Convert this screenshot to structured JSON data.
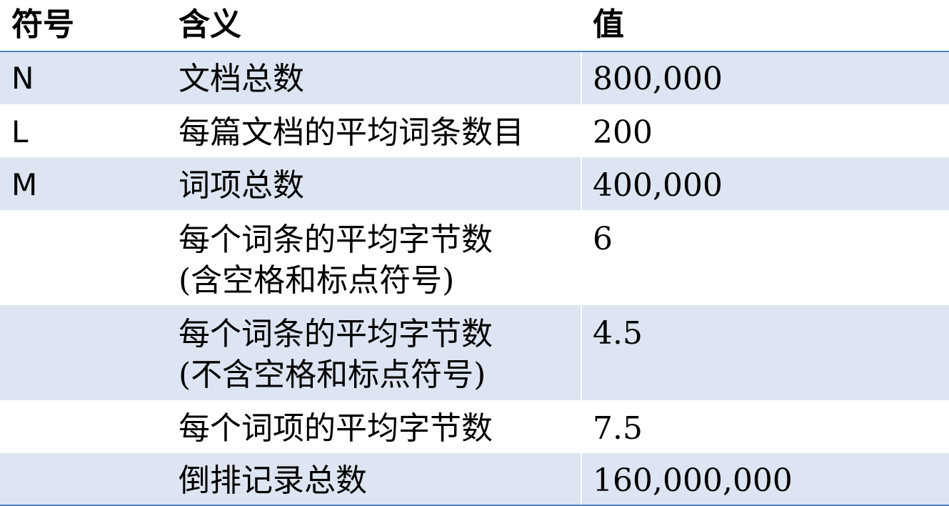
{
  "table": {
    "headers": {
      "symbol": "符号",
      "meaning": "含义",
      "value": "值"
    },
    "rows": [
      {
        "symbol": "N",
        "meaning": [
          "文档总数"
        ],
        "value": "800,000",
        "shade": "#dce5f1"
      },
      {
        "symbol": "L",
        "meaning": [
          "每篇文档的平均词条数目"
        ],
        "value": "200",
        "shade": "#ffffff"
      },
      {
        "symbol": "M",
        "meaning": [
          "词项总数"
        ],
        "value": "400,000",
        "shade": "#dce5f1"
      },
      {
        "symbol": "",
        "meaning": [
          "每个词条的平均字节数",
          "(含空格和标点符号)"
        ],
        "value": "6",
        "shade": "#ffffff"
      },
      {
        "symbol": "",
        "meaning": [
          "每个词条的平均字节数",
          "(不含空格和标点符号)"
        ],
        "value": "4.5",
        "shade": "#dce5f1"
      },
      {
        "symbol": "",
        "meaning": [
          "每个词项的平均字节数"
        ],
        "value": "7.5",
        "shade": "#ffffff"
      },
      {
        "symbol": "",
        "meaning": [
          "倒排记录总数"
        ],
        "value": "160,000,000",
        "shade": "#dce5f1"
      }
    ],
    "border_color": "#4f81bd"
  }
}
